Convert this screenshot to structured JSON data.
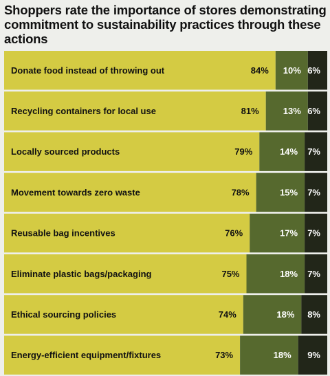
{
  "chart_data": {
    "type": "bar",
    "stacked": true,
    "orientation": "horizontal",
    "title": "Shoppers rate the importance of stores demonstrating commitment to sustainability practices through these actions",
    "categories": [
      "Donate food instead of throwing out",
      "Recycling containers for local use",
      "Locally sourced products",
      "Movement towards zero waste",
      "Reusable bag incentives",
      "Eliminate plastic bags/packaging",
      "Ethical sourcing policies",
      "Energy-efficient equipment/fixtures"
    ],
    "series": [
      {
        "values": [
          84,
          81,
          79,
          78,
          76,
          75,
          74,
          73
        ],
        "color": "#d4cb43"
      },
      {
        "values": [
          10,
          13,
          14,
          15,
          17,
          18,
          18,
          18
        ],
        "color": "#56692e"
      },
      {
        "values": [
          6,
          6,
          7,
          7,
          7,
          7,
          8,
          9
        ],
        "color": "#222619"
      }
    ],
    "value_suffix": "%",
    "xlim": [
      0,
      100
    ]
  }
}
